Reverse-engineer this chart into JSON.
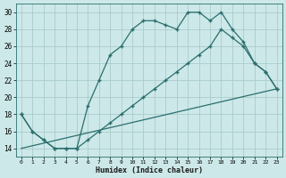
{
  "xlabel": "Humidex (Indice chaleur)",
  "bg_color": "#cde8e8",
  "grid_color": "#aacccc",
  "line_color": "#2a6e6e",
  "xlim": [
    -0.5,
    23.5
  ],
  "ylim": [
    13,
    31
  ],
  "xticks": [
    0,
    1,
    2,
    3,
    4,
    5,
    6,
    7,
    8,
    9,
    10,
    11,
    12,
    13,
    14,
    15,
    16,
    17,
    18,
    19,
    20,
    21,
    22,
    23
  ],
  "yticks": [
    14,
    16,
    18,
    20,
    22,
    24,
    26,
    28,
    30
  ],
  "line1_x": [
    0,
    1,
    2,
    3,
    4,
    5,
    6,
    7,
    8,
    9,
    10,
    11,
    12,
    13,
    14,
    15,
    16,
    17,
    18,
    19,
    20,
    21,
    22,
    23
  ],
  "line1_y": [
    18,
    16,
    15,
    14,
    14,
    14,
    19,
    22,
    25,
    26,
    28,
    29,
    29,
    28.5,
    28,
    30,
    30,
    29,
    30,
    28,
    26.5,
    24,
    23,
    21
  ],
  "line2_x": [
    0,
    1,
    2,
    3,
    4,
    5,
    6,
    7,
    8,
    9,
    10,
    11,
    12,
    13,
    14,
    15,
    16,
    17,
    18,
    19,
    20,
    21,
    22,
    23
  ],
  "line2_y": [
    18,
    16,
    15,
    14,
    14,
    14,
    15,
    16,
    17,
    18,
    19,
    20,
    21,
    22,
    23,
    24,
    25,
    26,
    28,
    27,
    26,
    24,
    23,
    21
  ],
  "line3_x": [
    0,
    23
  ],
  "line3_y": [
    14,
    21
  ]
}
